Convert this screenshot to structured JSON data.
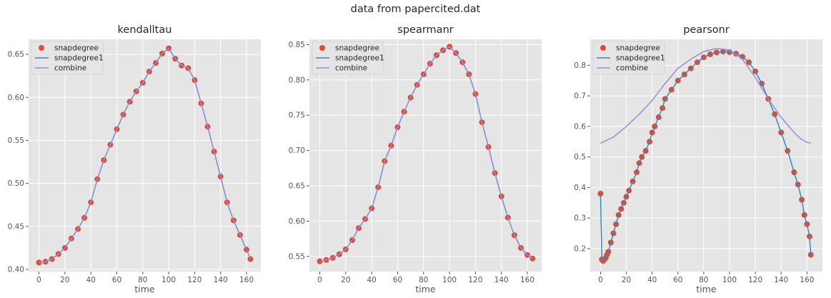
{
  "suptitle": "data from papercited.dat",
  "colors": {
    "background": "#e5e5e5",
    "grid": "#ffffff",
    "snapdegree": "#e24a33",
    "snapdegree1": "#348abd",
    "combine": "#988ed5",
    "text": "#262626",
    "ticks": "#555555"
  },
  "chart_data": [
    {
      "type": "line",
      "title": "kendalltau",
      "xlabel": "time",
      "ylabel": "",
      "xlim": [
        -8,
        171
      ],
      "ylim": [
        0.3975,
        0.6675
      ],
      "xticks": [
        0,
        20,
        40,
        60,
        80,
        100,
        120,
        140,
        160
      ],
      "yticks": [
        0.4,
        0.45,
        0.5,
        0.55,
        0.6,
        0.65
      ],
      "ytick_labels": [
        "0.40",
        "0.45",
        "0.50",
        "0.55",
        "0.60",
        "0.65"
      ],
      "grid": true,
      "legend": "top-left",
      "legend_entries": [
        "snapdegree",
        "snapdegree1",
        "combine"
      ],
      "x": [
        0,
        5,
        10,
        15,
        20,
        25,
        30,
        35,
        40,
        45,
        50,
        55,
        60,
        65,
        70,
        75,
        80,
        85,
        90,
        95,
        100,
        105,
        110,
        115,
        120,
        125,
        130,
        135,
        140,
        145,
        150,
        155,
        160,
        163
      ],
      "series": [
        {
          "name": "snapdegree",
          "style": "markers",
          "values": [
            0.408,
            0.409,
            0.412,
            0.418,
            0.425,
            0.436,
            0.447,
            0.46,
            0.478,
            0.505,
            0.527,
            0.545,
            0.563,
            0.58,
            0.595,
            0.607,
            0.617,
            0.63,
            0.64,
            0.651,
            0.657,
            0.645,
            0.637,
            0.634,
            0.62,
            0.593,
            0.566,
            0.537,
            0.508,
            0.478,
            0.457,
            0.44,
            0.423,
            0.412
          ]
        },
        {
          "name": "snapdegree1",
          "style": "line",
          "values": [
            0.408,
            0.409,
            0.412,
            0.418,
            0.425,
            0.436,
            0.447,
            0.46,
            0.478,
            0.505,
            0.527,
            0.545,
            0.563,
            0.58,
            0.595,
            0.607,
            0.617,
            0.63,
            0.64,
            0.651,
            0.657,
            0.645,
            0.637,
            0.634,
            0.62,
            0.593,
            0.566,
            0.537,
            0.508,
            0.478,
            0.457,
            0.44,
            0.423,
            0.412
          ]
        },
        {
          "name": "combine",
          "style": "line",
          "values": [
            0.408,
            0.409,
            0.412,
            0.418,
            0.425,
            0.436,
            0.447,
            0.46,
            0.478,
            0.505,
            0.527,
            0.545,
            0.563,
            0.58,
            0.595,
            0.607,
            0.617,
            0.63,
            0.64,
            0.651,
            0.657,
            0.645,
            0.637,
            0.634,
            0.62,
            0.593,
            0.566,
            0.537,
            0.508,
            0.478,
            0.457,
            0.44,
            0.423,
            0.412
          ]
        }
      ]
    },
    {
      "type": "line",
      "title": "spearmanr",
      "xlabel": "time",
      "ylabel": "",
      "xlim": [
        -8,
        171
      ],
      "ylim": [
        0.5285,
        0.8575
      ],
      "xticks": [
        0,
        20,
        40,
        60,
        80,
        100,
        120,
        140,
        160
      ],
      "yticks": [
        0.55,
        0.6,
        0.65,
        0.7,
        0.75,
        0.8,
        0.85
      ],
      "ytick_labels": [
        "0.55",
        "0.60",
        "0.65",
        "0.70",
        "0.75",
        "0.80",
        "0.85"
      ],
      "grid": true,
      "legend": "top-left",
      "legend_entries": [
        "snapdegree",
        "snapdegree1",
        "combine"
      ],
      "x": [
        0,
        5,
        10,
        15,
        20,
        25,
        30,
        35,
        40,
        45,
        50,
        55,
        60,
        65,
        70,
        75,
        80,
        85,
        90,
        95,
        100,
        105,
        110,
        115,
        120,
        125,
        130,
        135,
        140,
        145,
        150,
        155,
        160,
        164
      ],
      "series": [
        {
          "name": "snapdegree",
          "style": "markers",
          "values": [
            0.543,
            0.545,
            0.548,
            0.553,
            0.56,
            0.573,
            0.59,
            0.603,
            0.618,
            0.648,
            0.685,
            0.707,
            0.733,
            0.755,
            0.775,
            0.793,
            0.808,
            0.823,
            0.835,
            0.842,
            0.847,
            0.838,
            0.825,
            0.808,
            0.78,
            0.74,
            0.705,
            0.668,
            0.635,
            0.605,
            0.58,
            0.562,
            0.552,
            0.547
          ]
        },
        {
          "name": "snapdegree1",
          "style": "line",
          "values": [
            0.543,
            0.545,
            0.548,
            0.553,
            0.56,
            0.573,
            0.59,
            0.603,
            0.618,
            0.648,
            0.685,
            0.707,
            0.733,
            0.755,
            0.775,
            0.793,
            0.808,
            0.823,
            0.835,
            0.842,
            0.847,
            0.838,
            0.825,
            0.808,
            0.78,
            0.74,
            0.705,
            0.668,
            0.635,
            0.605,
            0.58,
            0.562,
            0.552,
            0.547
          ]
        },
        {
          "name": "combine",
          "style": "line",
          "values": [
            0.543,
            0.545,
            0.548,
            0.553,
            0.56,
            0.573,
            0.59,
            0.603,
            0.618,
            0.648,
            0.685,
            0.707,
            0.733,
            0.755,
            0.775,
            0.793,
            0.808,
            0.823,
            0.835,
            0.842,
            0.847,
            0.838,
            0.825,
            0.808,
            0.78,
            0.74,
            0.705,
            0.668,
            0.635,
            0.605,
            0.58,
            0.562,
            0.552,
            0.547
          ]
        }
      ]
    },
    {
      "type": "line",
      "title": "pearsonr",
      "xlabel": "time",
      "ylabel": "",
      "xlim": [
        -8,
        172
      ],
      "ylim": [
        0.125,
        0.885
      ],
      "xticks": [
        0,
        20,
        40,
        60,
        80,
        100,
        120,
        140,
        160
      ],
      "yticks": [
        0.2,
        0.3,
        0.4,
        0.5,
        0.6,
        0.7,
        0.8
      ],
      "ytick_labels": [
        "0.2",
        "0.3",
        "0.4",
        "0.5",
        "0.6",
        "0.7",
        "0.8"
      ],
      "grid": true,
      "legend": "top-left",
      "legend_entries": [
        "snapdegree",
        "snapdegree1",
        "combine"
      ],
      "series": [
        {
          "name": "snapdegree",
          "style": "markers",
          "x": [
            0,
            1,
            2,
            3,
            4,
            5,
            6,
            8,
            10,
            12,
            14,
            16,
            18,
            20,
            22,
            25,
            28,
            30,
            32,
            35,
            38,
            40,
            42,
            45,
            48,
            50,
            55,
            60,
            65,
            70,
            75,
            80,
            85,
            90,
            95,
            100,
            105,
            110,
            115,
            120,
            125,
            130,
            135,
            140,
            145,
            150,
            153,
            156,
            158,
            160,
            162,
            163
          ],
          "values": [
            0.38,
            0.165,
            0.16,
            0.165,
            0.17,
            0.18,
            0.19,
            0.22,
            0.25,
            0.28,
            0.31,
            0.33,
            0.35,
            0.37,
            0.39,
            0.42,
            0.45,
            0.48,
            0.5,
            0.52,
            0.55,
            0.58,
            0.6,
            0.63,
            0.66,
            0.69,
            0.72,
            0.75,
            0.77,
            0.79,
            0.81,
            0.826,
            0.836,
            0.842,
            0.845,
            0.843,
            0.838,
            0.828,
            0.81,
            0.78,
            0.74,
            0.69,
            0.64,
            0.58,
            0.52,
            0.45,
            0.41,
            0.36,
            0.31,
            0.28,
            0.24,
            0.18
          ]
        },
        {
          "name": "snapdegree1",
          "style": "line",
          "x": [
            0,
            1,
            2,
            3,
            4,
            5,
            6,
            8,
            10,
            12,
            14,
            16,
            18,
            20,
            22,
            25,
            28,
            30,
            32,
            35,
            38,
            40,
            42,
            45,
            48,
            50,
            55,
            60,
            65,
            70,
            75,
            80,
            85,
            90,
            95,
            100,
            105,
            110,
            115,
            120,
            125,
            130,
            135,
            140,
            145,
            150,
            153,
            156,
            158,
            160,
            162,
            163
          ],
          "values": [
            0.38,
            0.165,
            0.16,
            0.165,
            0.17,
            0.18,
            0.19,
            0.22,
            0.25,
            0.28,
            0.31,
            0.33,
            0.35,
            0.37,
            0.39,
            0.42,
            0.45,
            0.48,
            0.5,
            0.52,
            0.55,
            0.58,
            0.6,
            0.63,
            0.66,
            0.69,
            0.72,
            0.75,
            0.77,
            0.79,
            0.81,
            0.826,
            0.836,
            0.842,
            0.845,
            0.843,
            0.838,
            0.828,
            0.81,
            0.78,
            0.74,
            0.69,
            0.64,
            0.58,
            0.52,
            0.45,
            0.41,
            0.36,
            0.31,
            0.28,
            0.24,
            0.18
          ]
        },
        {
          "name": "combine",
          "style": "line",
          "x": [
            0,
            10,
            20,
            30,
            40,
            50,
            60,
            70,
            80,
            90,
            100,
            110,
            120,
            130,
            140,
            150,
            155,
            160,
            163
          ],
          "values": [
            0.545,
            0.565,
            0.6,
            0.64,
            0.685,
            0.74,
            0.79,
            0.82,
            0.845,
            0.855,
            0.85,
            0.82,
            0.76,
            0.69,
            0.63,
            0.58,
            0.56,
            0.548,
            0.545
          ]
        }
      ]
    }
  ]
}
